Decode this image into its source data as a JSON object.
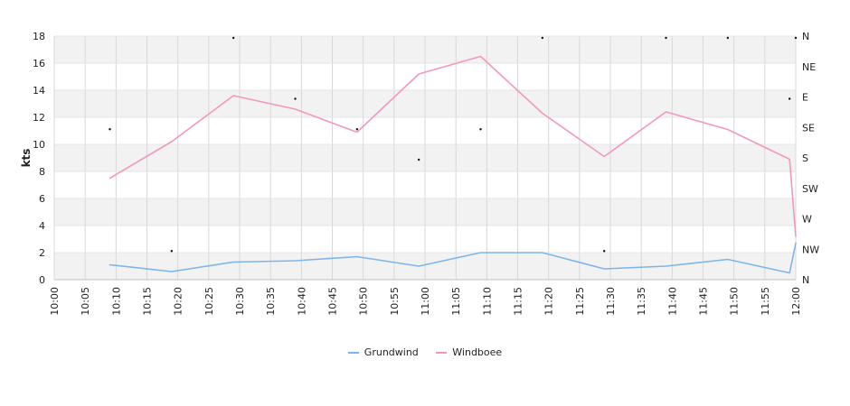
{
  "chart_data": {
    "type": "line",
    "ylabel": "kts",
    "ylim": [
      0,
      18
    ],
    "y_ticks": [
      "0",
      "2",
      "4",
      "6",
      "8",
      "10",
      "12",
      "14",
      "16",
      "18"
    ],
    "x_ticks": [
      "10:00",
      "10:05",
      "10:10",
      "10:15",
      "10:20",
      "10:25",
      "10:30",
      "10:35",
      "10:40",
      "10:45",
      "10:50",
      "10:55",
      "11:00",
      "11:05",
      "11:10",
      "11:15",
      "11:20",
      "11:25",
      "11:30",
      "11:35",
      "11:40",
      "11:45",
      "11:50",
      "11:55",
      "12:00"
    ],
    "direction_ticks": [
      "N",
      "NW",
      "W",
      "SW",
      "S",
      "SE",
      "E",
      "NE",
      "N"
    ],
    "grid": true,
    "legend": "bottom",
    "series": [
      {
        "name": "Grundwind",
        "color": "#7cb5ec",
        "points": [
          {
            "x": "10:09",
            "y": 1.1
          },
          {
            "x": "10:19",
            "y": 0.6
          },
          {
            "x": "10:29",
            "y": 1.3
          },
          {
            "x": "10:39",
            "y": 1.4
          },
          {
            "x": "10:49",
            "y": 1.7
          },
          {
            "x": "10:59",
            "y": 1.0
          },
          {
            "x": "11:09",
            "y": 2.0
          },
          {
            "x": "11:19",
            "y": 2.0
          },
          {
            "x": "11:29",
            "y": 0.8
          },
          {
            "x": "11:39",
            "y": 1.0
          },
          {
            "x": "11:49",
            "y": 1.5
          },
          {
            "x": "11:59",
            "y": 0.5
          },
          {
            "x": "12:00",
            "y": 2.7
          }
        ]
      },
      {
        "name": "Windboee",
        "color": "#f397c0",
        "points": [
          {
            "x": "10:09",
            "y": 7.5
          },
          {
            "x": "10:19",
            "y": 10.2
          },
          {
            "x": "10:29",
            "y": 13.6
          },
          {
            "x": "10:39",
            "y": 12.6
          },
          {
            "x": "10:49",
            "y": 10.9
          },
          {
            "x": "10:59",
            "y": 15.2
          },
          {
            "x": "11:09",
            "y": 16.5
          },
          {
            "x": "11:19",
            "y": 12.3
          },
          {
            "x": "11:29",
            "y": 9.1
          },
          {
            "x": "11:39",
            "y": 12.4
          },
          {
            "x": "11:49",
            "y": 11.1
          },
          {
            "x": "11:59",
            "y": 8.9
          },
          {
            "x": "12:00",
            "y": 3.2
          }
        ]
      }
    ],
    "direction_points": [
      {
        "x": "10:09",
        "dir": "SE"
      },
      {
        "x": "10:19",
        "dir": "NW"
      },
      {
        "x": "10:29",
        "dir": "N"
      },
      {
        "x": "10:39",
        "dir": "E"
      },
      {
        "x": "10:49",
        "dir": "SE"
      },
      {
        "x": "10:59",
        "dir": "S"
      },
      {
        "x": "11:09",
        "dir": "SE"
      },
      {
        "x": "11:19",
        "dir": "N"
      },
      {
        "x": "11:29",
        "dir": "NW"
      },
      {
        "x": "11:39",
        "dir": "N"
      },
      {
        "x": "11:49",
        "dir": "N"
      },
      {
        "x": "11:59",
        "dir": "E"
      },
      {
        "x": "12:00",
        "dir": "N"
      }
    ]
  }
}
